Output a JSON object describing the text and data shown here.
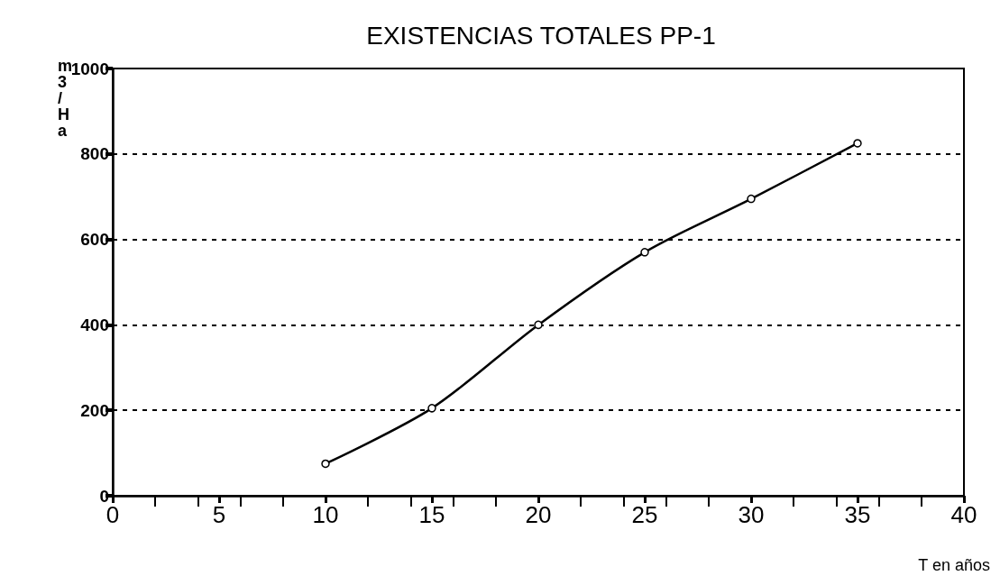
{
  "chart_data": {
    "type": "line",
    "title": "EXISTENCIAS TOTALES PP-1",
    "xlabel": "T en años",
    "ylabel": "m3/Ha",
    "x": [
      10,
      15,
      20,
      25,
      30,
      35
    ],
    "series": [
      {
        "color": "#000000",
        "values": [
          75,
          205,
          400,
          570,
          695,
          825
        ]
      }
    ],
    "xlim": [
      0,
      40
    ],
    "xticks": [
      0,
      5,
      10,
      15,
      20,
      25,
      30,
      35,
      40
    ],
    "ylim": [
      0,
      1000
    ],
    "yticks": [
      0,
      200,
      400,
      600,
      800,
      1000
    ],
    "grid": "y",
    "marker": "circle",
    "line_style": "solid"
  }
}
